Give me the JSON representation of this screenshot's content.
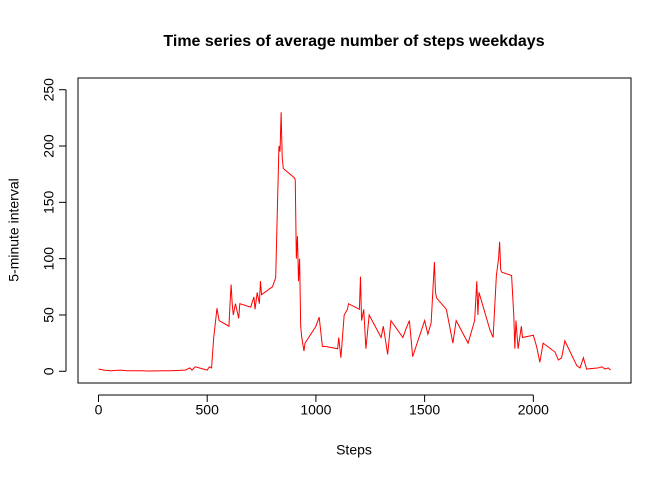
{
  "chart_data": {
    "type": "line",
    "title": "Time series of average number of steps weekdays",
    "xlabel": "Steps",
    "ylabel": "5-minute interval",
    "color": "#ff0000",
    "x": [
      0,
      25,
      55,
      100,
      130,
      200,
      230,
      300,
      330,
      400,
      420,
      430,
      445,
      500,
      510,
      520,
      530,
      545,
      550,
      555,
      600,
      605,
      610,
      615,
      620,
      630,
      645,
      650,
      700,
      715,
      720,
      730,
      740,
      745,
      750,
      800,
      815,
      830,
      835,
      840,
      845,
      850,
      900,
      905,
      910,
      915,
      920,
      925,
      930,
      935,
      945,
      950,
      1000,
      1015,
      1030,
      1045,
      1100,
      1105,
      1115,
      1130,
      1145,
      1150,
      1200,
      1205,
      1210,
      1220,
      1230,
      1245,
      1300,
      1310,
      1330,
      1345,
      1400,
      1415,
      1430,
      1445,
      1500,
      1515,
      1530,
      1545,
      1550,
      1555,
      1600,
      1610,
      1630,
      1645,
      1700,
      1715,
      1730,
      1740,
      1745,
      1750,
      1800,
      1815,
      1830,
      1840,
      1845,
      1850,
      1855,
      1900,
      1910,
      1915,
      1920,
      1930,
      1945,
      1950,
      2000,
      2015,
      2030,
      2045,
      2100,
      2115,
      2130,
      2145,
      2200,
      2215,
      2230,
      2245,
      2300,
      2315,
      2330,
      2345,
      2355
    ],
    "values": [
      2,
      1,
      0.5,
      1,
      0.5,
      0.5,
      0.3,
      0.5,
      0.5,
      1,
      3,
      1,
      4,
      1,
      4,
      3,
      30,
      56,
      50,
      45,
      40,
      60,
      77,
      60,
      50,
      60,
      47,
      60,
      57,
      66,
      55,
      70,
      60,
      80,
      68,
      75,
      83,
      200,
      195,
      230,
      190,
      180,
      172,
      170,
      100,
      120,
      80,
      100,
      40,
      30,
      18,
      25,
      40,
      48,
      22,
      22,
      20,
      30,
      12,
      50,
      55,
      60,
      55,
      84,
      45,
      55,
      20,
      50,
      30,
      40,
      15,
      45,
      30,
      38,
      45,
      13,
      45,
      33,
      43,
      97,
      70,
      65,
      55,
      45,
      25,
      45,
      25,
      35,
      45,
      80,
      50,
      70,
      37,
      30,
      85,
      100,
      115,
      90,
      88,
      85,
      50,
      20,
      45,
      20,
      40,
      30,
      32,
      22,
      8,
      25,
      17,
      10,
      12,
      27,
      5,
      3,
      12,
      2,
      3,
      4,
      2,
      3,
      1
    ],
    "xlim": [
      -94.2,
      2449.2
    ],
    "ylim": [
      -10.4,
      260.4
    ],
    "xticks": [
      0,
      500,
      1000,
      1500,
      2000
    ],
    "yticks": [
      0,
      50,
      100,
      150,
      200,
      250
    ]
  }
}
